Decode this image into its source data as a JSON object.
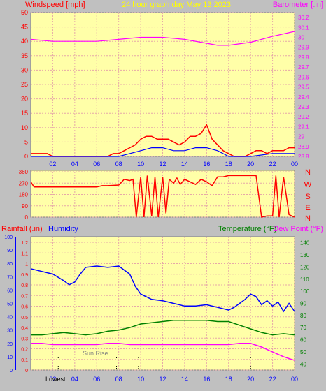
{
  "header": {
    "left": "Windspeed [mph]",
    "center": "24 hour graph day   May 13 2023",
    "right": "Barometer [.in]"
  },
  "direction_letters": [
    "N",
    "W",
    "S",
    "E",
    "N"
  ],
  "bottom_labels": {
    "rainfall": "Rainfall (.in)",
    "humidity": "Humidity",
    "temperature": "Temperature (°F)",
    "dewpoint": "Dew Point (°F)",
    "sunrise": "Sun Rise",
    "marker_left": "Lowest"
  },
  "colors": {
    "background": "#c0c0c0",
    "plot_bg": "#ffffa8",
    "grid": "#e6a8a8",
    "wind": "#ff0000",
    "gust_blue": "#0000ff",
    "gust_green": "#008000",
    "barometer": "#ff00ff",
    "direction": "#ff0000",
    "humidity": "#0000ff",
    "temperature": "#008000",
    "dewpoint": "#ff00ff",
    "title": "#ffff00",
    "rain_axis": "#ff0000",
    "humidity_axis": "#0000ff",
    "temp_axis": "#008000"
  },
  "chart_data": [
    {
      "type": "line",
      "name": "wind-barometer",
      "x_ticks": [
        "02",
        "04",
        "06",
        "08",
        "10",
        "12",
        "14",
        "16",
        "18",
        "20",
        "22",
        "00"
      ],
      "y_left_ticks": [
        "0",
        "5",
        "10",
        "15",
        "20",
        "25",
        "30",
        "35",
        "40",
        "45",
        "50"
      ],
      "y_right_ticks": [
        "28.8",
        "28.9",
        "29",
        "29.1",
        "29.2",
        "29.3",
        "29.4",
        "29.5",
        "29.6",
        "29.7",
        "29.8",
        "29.9",
        "30",
        "30.1",
        "30.2"
      ],
      "ylim_left": [
        0,
        50
      ],
      "ylim_right": [
        28.8,
        30.25
      ],
      "series": [
        {
          "key": "barometer",
          "axis": "right",
          "x": [
            0,
            2,
            4,
            6,
            8,
            10,
            12,
            14,
            16,
            17,
            18,
            20,
            22,
            24
          ],
          "y": [
            29.98,
            29.96,
            29.96,
            29.96,
            29.98,
            30.0,
            30.0,
            29.98,
            29.94,
            29.92,
            29.92,
            29.95,
            30.01,
            30.06
          ]
        },
        {
          "key": "windspeed",
          "axis": "left",
          "x": [
            0,
            1.5,
            2,
            6.5,
            7,
            7.5,
            8,
            8.5,
            9,
            9.5,
            10,
            10.5,
            11,
            11.5,
            12,
            12.5,
            13,
            13.5,
            14,
            14.5,
            15,
            15.5,
            16,
            16.5,
            17,
            17.5,
            18,
            18.5,
            19,
            19.5,
            20,
            20.5,
            21,
            21.5,
            22,
            22.5,
            23,
            23.5,
            24
          ],
          "y": [
            1,
            1,
            0,
            0,
            0,
            1,
            1,
            2,
            3,
            4,
            6,
            7,
            7,
            6,
            6,
            6,
            5,
            4,
            5,
            7,
            7,
            8,
            11,
            6,
            4,
            2,
            1,
            0,
            0,
            0,
            1,
            2,
            2,
            1,
            2,
            2,
            2,
            3,
            3
          ]
        },
        {
          "key": "windavg",
          "axis": "left",
          "x": [
            0,
            8,
            9,
            10,
            11,
            12,
            13,
            14,
            15,
            16,
            17,
            18,
            19,
            20,
            22,
            24
          ],
          "y": [
            0,
            0,
            1,
            2,
            3,
            3,
            2,
            2,
            3,
            3,
            2,
            0,
            0,
            0,
            1,
            1
          ]
        }
      ]
    },
    {
      "type": "line",
      "name": "wind-direction",
      "y_ticks": [
        "0",
        "90",
        "180",
        "270",
        "360"
      ],
      "ylim": [
        0,
        360
      ],
      "series": [
        {
          "key": "direction",
          "x": [
            0,
            0.3,
            1,
            6,
            6.5,
            7,
            8,
            8.5,
            9,
            9.3,
            9.6,
            10,
            10.3,
            10.6,
            11,
            11.3,
            11.6,
            12,
            12.3,
            12.6,
            13,
            13.3,
            13.6,
            14,
            14.5,
            15,
            15.5,
            16,
            16.5,
            17,
            17.5,
            18,
            19,
            20,
            20.5,
            21,
            21.5,
            22,
            22.3,
            22.6,
            23,
            23.5,
            24
          ],
          "y": [
            280,
            240,
            240,
            240,
            250,
            250,
            255,
            300,
            290,
            300,
            0,
            320,
            0,
            330,
            10,
            320,
            0,
            320,
            30,
            300,
            270,
            310,
            260,
            300,
            280,
            260,
            300,
            280,
            250,
            320,
            320,
            330,
            330,
            330,
            330,
            0,
            10,
            10,
            330,
            0,
            320,
            20,
            0
          ]
        }
      ]
    },
    {
      "type": "line",
      "name": "rain-humidity-temperature",
      "y_left_rain_ticks": [
        "0",
        "0.1",
        "0.2",
        "0.3",
        "0.4",
        "0.5",
        "0.6",
        "0.7",
        "0.8",
        "0.9",
        "1",
        "1.1",
        "1.2"
      ],
      "y_left_humidity_ticks": [
        "0",
        "10",
        "20",
        "30",
        "40",
        "50",
        "60",
        "70",
        "80",
        "90",
        "100"
      ],
      "y_right_ticks": [
        "40",
        "50",
        "60",
        "70",
        "80",
        "90",
        "100",
        "110",
        "120",
        "130",
        "140"
      ],
      "ylim_humidity": [
        0,
        100
      ],
      "ylim_temperature": [
        35,
        145
      ],
      "series": [
        {
          "key": "humidity",
          "axis": "humidity",
          "x": [
            0,
            0.5,
            1,
            2,
            3,
            3.5,
            4,
            4.5,
            5,
            6,
            7,
            8,
            9,
            9.5,
            10,
            10.5,
            11,
            12,
            13,
            14,
            15,
            16,
            17,
            18,
            18.5,
            19,
            19.5,
            20,
            20.5,
            21,
            21.5,
            22,
            22.5,
            23,
            23.5,
            24
          ],
          "y": [
            76,
            75,
            74,
            72,
            67,
            64,
            66,
            72,
            77,
            78,
            77,
            78,
            72,
            63,
            57,
            55,
            53,
            52,
            50,
            48,
            48,
            49,
            47,
            45,
            47,
            50,
            53,
            57,
            55,
            49,
            52,
            48,
            51,
            44,
            50,
            44
          ]
        },
        {
          "key": "temperature",
          "axis": "temperature",
          "x": [
            0,
            1,
            2,
            3,
            4,
            5,
            6,
            7,
            8,
            9,
            10,
            11,
            12,
            13,
            14,
            15,
            16,
            17,
            18,
            19,
            20,
            21,
            22,
            23,
            24
          ],
          "y": [
            64,
            64,
            65,
            66,
            65,
            64,
            65,
            67,
            68,
            70,
            73,
            74,
            75,
            76,
            76,
            76,
            76,
            75,
            75,
            72,
            69,
            66,
            64,
            65,
            64
          ]
        },
        {
          "key": "dewpoint",
          "axis": "temperature",
          "x": [
            0,
            1,
            2,
            3,
            4,
            5,
            6,
            7,
            8,
            9,
            10,
            11,
            12,
            13,
            14,
            15,
            16,
            17,
            18,
            19,
            20,
            21,
            22,
            23,
            24
          ],
          "y": [
            57,
            57,
            56,
            56,
            56,
            56,
            56,
            57,
            57,
            56,
            56,
            56,
            56,
            56,
            56,
            56,
            56,
            56,
            56,
            57,
            57,
            54,
            50,
            46,
            43
          ]
        }
      ]
    }
  ]
}
